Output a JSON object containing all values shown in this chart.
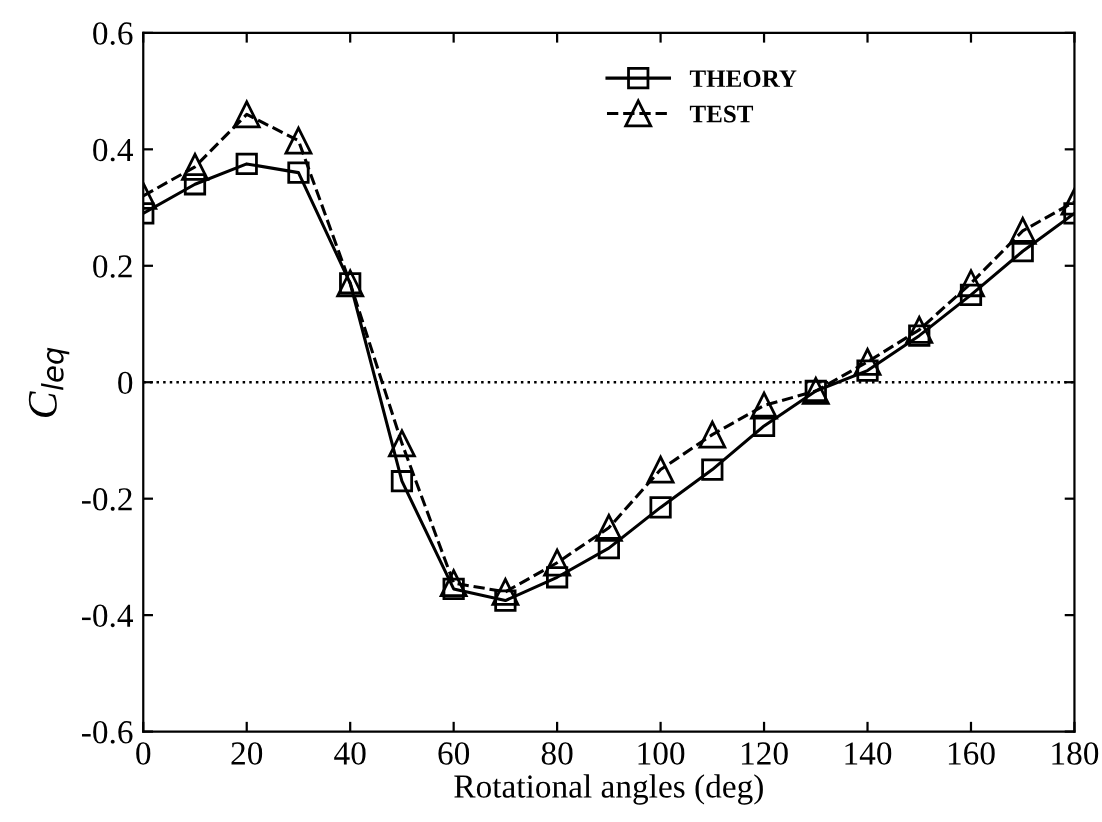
{
  "chart_data": {
    "type": "line",
    "xlabel": "Rotational angles (deg)",
    "ylabel": "C$_{leq}$",
    "x": [
      0,
      10,
      20,
      30,
      40,
      50,
      60,
      70,
      80,
      90,
      100,
      110,
      120,
      130,
      140,
      150,
      160,
      170,
      180
    ],
    "series": [
      {
        "name": "THEORY",
        "color": "#000000",
        "marker": "square",
        "line_style": "solid",
        "values": [
          0.29,
          0.34,
          0.375,
          0.36,
          0.17,
          -0.17,
          -0.355,
          -0.375,
          -0.335,
          -0.285,
          -0.215,
          -0.15,
          -0.075,
          -0.015,
          0.02,
          0.08,
          0.15,
          0.225,
          0.29
        ]
      },
      {
        "name": "TEST",
        "color": "#000000",
        "marker": "triangle",
        "line_style": "dashed",
        "values": [
          0.32,
          0.37,
          0.46,
          0.415,
          0.17,
          -0.105,
          -0.345,
          -0.36,
          -0.31,
          -0.25,
          -0.15,
          -0.09,
          -0.04,
          -0.015,
          0.035,
          0.09,
          0.17,
          0.26,
          0.31
        ]
      }
    ],
    "xlim": [
      0,
      180
    ],
    "xticks": [
      0,
      20,
      40,
      60,
      80,
      100,
      120,
      140,
      160,
      180
    ],
    "ylim": [
      -0.6,
      0.6
    ],
    "yticks": [
      -0.6,
      -0.4,
      -0.2,
      0,
      0.2,
      0.4,
      0.6
    ],
    "ref_lines": [
      {
        "axis": "y",
        "value": 0,
        "color": "#000000",
        "line_style": "dotted"
      }
    ],
    "grid": false,
    "legend": "top"
  }
}
